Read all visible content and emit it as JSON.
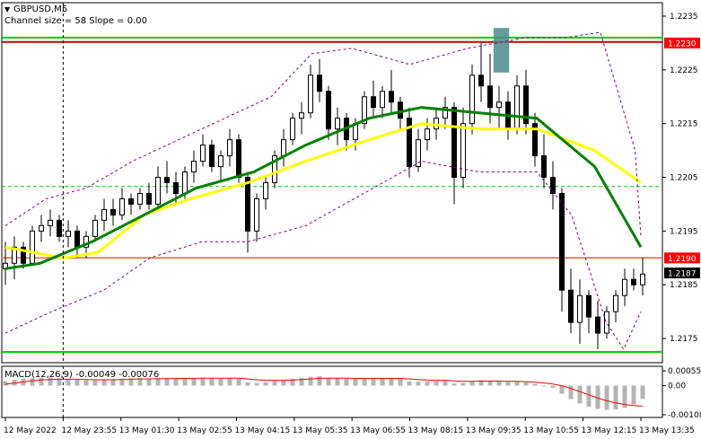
{
  "chart_data": {
    "type": "candlestick",
    "symbol_label": "GBPUSD,M5",
    "indicator_label": "Channel size = 58  Slope = 0.00",
    "price_axis": {
      "ticks": [
        "1.2235",
        "1.2225",
        "1.2215",
        "1.2205",
        "1.2195",
        "1.2185",
        "1.2175"
      ],
      "tick_values": [
        1.2235,
        1.2225,
        1.2215,
        1.2205,
        1.2195,
        1.2185,
        1.2175
      ],
      "range": [
        1.21705,
        1.22375
      ]
    },
    "price_labels": [
      {
        "text": "1.2230",
        "value": 1.223,
        "color": "#ff0000"
      },
      {
        "text": "1.2190",
        "value": 1.219,
        "color": "#ff0000"
      },
      {
        "text": "1.2187",
        "value": 1.21872,
        "color": "#000000"
      }
    ],
    "levels": [
      {
        "value": 1.2231,
        "style": "solid",
        "color": "#00cc00"
      },
      {
        "value": 1.22302,
        "style": "solid",
        "color": "#cc0000"
      },
      {
        "value": 1.22033,
        "style": "dashed",
        "color": "#00cc00"
      },
      {
        "value": 1.219,
        "style": "solid",
        "color": "#e08060"
      },
      {
        "value": 1.21725,
        "style": "solid",
        "color": "#00cc00"
      }
    ],
    "vertical_marker_time_index": 1,
    "highlight_box": {
      "from_time_index": 8.45,
      "to_time_index": 8.72,
      "price_low": 1.22245,
      "price_high": 1.22328,
      "color": "#4a8b8b"
    },
    "time_axis": [
      "12 May 2022",
      "12 May 23:55",
      "13 May 01:30",
      "13 May 02:55",
      "13 May 04:15",
      "13 May 05:35",
      "13 May 06:55",
      "13 May 08:15",
      "13 May 09:35",
      "13 May 10:55",
      "13 May 12:15",
      "13 May 13:35"
    ],
    "moving_averages": [
      {
        "color": "#ffff00",
        "role": "slow",
        "points": [
          [
            0,
            1.2192
          ],
          [
            1,
            1.219
          ],
          [
            1.6,
            1.2191
          ],
          [
            2.4,
            1.2198
          ],
          [
            3.2,
            1.2201
          ],
          [
            4.2,
            1.2204
          ],
          [
            5.2,
            1.2208
          ],
          [
            6.3,
            1.2212
          ],
          [
            7.2,
            1.2215
          ],
          [
            8.2,
            1.2214
          ],
          [
            9.2,
            1.2214
          ],
          [
            10.2,
            1.221
          ],
          [
            11,
            1.2204
          ]
        ]
      },
      {
        "color": "#008000",
        "role": "fast",
        "points": [
          [
            0,
            1.2188
          ],
          [
            0.6,
            1.2189
          ],
          [
            1.5,
            1.2193
          ],
          [
            2.4,
            1.2198
          ],
          [
            3.3,
            1.2203
          ],
          [
            4.3,
            1.2206
          ],
          [
            5.2,
            1.2211
          ],
          [
            6.3,
            1.2216
          ],
          [
            7.2,
            1.2218
          ],
          [
            8.2,
            1.2217
          ],
          [
            9.2,
            1.2216
          ],
          [
            10.2,
            1.2207
          ],
          [
            11,
            1.2192
          ]
        ]
      },
      {
        "color": "#800080",
        "role": "band-upper",
        "dashed": true,
        "points": [
          [
            0,
            1.2196
          ],
          [
            0.7,
            1.2201
          ],
          [
            1.4,
            1.2203
          ],
          [
            2.2,
            1.2208
          ],
          [
            3,
            1.2212
          ],
          [
            3.8,
            1.2216
          ],
          [
            4.6,
            1.222
          ],
          [
            5.3,
            1.2228
          ],
          [
            6.0,
            1.2229
          ],
          [
            7.0,
            1.2226
          ],
          [
            8.0,
            1.2229
          ],
          [
            9.0,
            1.2231
          ],
          [
            9.7,
            1.2231
          ],
          [
            10.3,
            1.2232
          ],
          [
            10.9,
            1.221
          ],
          [
            11,
            1.2194
          ]
        ]
      },
      {
        "color": "#800080",
        "role": "band-lower",
        "dashed": true,
        "points": [
          [
            0,
            1.2176
          ],
          [
            0.8,
            1.218
          ],
          [
            1.7,
            1.2184
          ],
          [
            2.5,
            1.219
          ],
          [
            3.4,
            1.2193
          ],
          [
            4.2,
            1.2193
          ],
          [
            5.2,
            1.2196
          ],
          [
            6.2,
            1.2202
          ],
          [
            7.2,
            1.2208
          ],
          [
            8.2,
            1.2206
          ],
          [
            9.2,
            1.2206
          ],
          [
            9.8,
            1.2198
          ],
          [
            10.4,
            1.2178
          ],
          [
            10.7,
            1.2173
          ],
          [
            11,
            1.218
          ]
        ]
      }
    ],
    "candles": [
      [
        1.2188,
        1.2193,
        1.2185,
        1.2189
      ],
      [
        1.2189,
        1.2194,
        1.2186,
        1.2192
      ],
      [
        1.2192,
        1.2193,
        1.2188,
        1.2189
      ],
      [
        1.2189,
        1.2196,
        1.2189,
        1.2195
      ],
      [
        1.2195,
        1.2198,
        1.2193,
        1.2196
      ],
      [
        1.2196,
        1.2199,
        1.2194,
        1.2197
      ],
      [
        1.2197,
        1.2198,
        1.2193,
        1.2194
      ],
      [
        1.2194,
        1.2197,
        1.2192,
        1.2195
      ],
      [
        1.2195,
        1.2196,
        1.219,
        1.2192
      ],
      [
        1.2192,
        1.2195,
        1.219,
        1.2194
      ],
      [
        1.2194,
        1.2198,
        1.2193,
        1.2197
      ],
      [
        1.2197,
        1.2201,
        1.2195,
        1.2199
      ],
      [
        1.2199,
        1.2201,
        1.2196,
        1.2198
      ],
      [
        1.2198,
        1.2203,
        1.2197,
        1.2201
      ],
      [
        1.2201,
        1.2202,
        1.2198,
        1.22
      ],
      [
        1.22,
        1.2203,
        1.2199,
        1.2202
      ],
      [
        1.2202,
        1.2204,
        1.2199,
        1.22
      ],
      [
        1.22,
        1.2207,
        1.2199,
        1.2205
      ],
      [
        1.2205,
        1.2208,
        1.2202,
        1.2204
      ],
      [
        1.2204,
        1.2206,
        1.22,
        1.2202
      ],
      [
        1.2202,
        1.2207,
        1.2201,
        1.2206
      ],
      [
        1.2206,
        1.221,
        1.2204,
        1.2208
      ],
      [
        1.2208,
        1.2213,
        1.2207,
        1.2211
      ],
      [
        1.2211,
        1.2212,
        1.2206,
        1.2207
      ],
      [
        1.2207,
        1.221,
        1.2204,
        1.2209
      ],
      [
        1.2209,
        1.2214,
        1.2207,
        1.2212
      ],
      [
        1.2212,
        1.2213,
        1.2204,
        1.2205
      ],
      [
        1.2205,
        1.2206,
        1.2191,
        1.2195
      ],
      [
        1.2195,
        1.2202,
        1.2193,
        1.2201
      ],
      [
        1.2201,
        1.2205,
        1.2199,
        1.2204
      ],
      [
        1.2204,
        1.221,
        1.2203,
        1.2209
      ],
      [
        1.2209,
        1.2214,
        1.2207,
        1.2212
      ],
      [
        1.2212,
        1.2217,
        1.2211,
        1.2216
      ],
      [
        1.2216,
        1.2219,
        1.2213,
        1.2217
      ],
      [
        1.2217,
        1.2226,
        1.2216,
        1.2224
      ],
      [
        1.2224,
        1.2227,
        1.2219,
        1.2221
      ],
      [
        1.2221,
        1.2222,
        1.2212,
        1.2214
      ],
      [
        1.2214,
        1.2218,
        1.2211,
        1.2216
      ],
      [
        1.2216,
        1.2217,
        1.221,
        1.2212
      ],
      [
        1.2212,
        1.2216,
        1.221,
        1.2215
      ],
      [
        1.2215,
        1.2221,
        1.2214,
        1.222
      ],
      [
        1.222,
        1.2223,
        1.2216,
        1.2218
      ],
      [
        1.2218,
        1.2222,
        1.2216,
        1.2221
      ],
      [
        1.2221,
        1.2225,
        1.2217,
        1.2219
      ],
      [
        1.2219,
        1.222,
        1.2214,
        1.2216
      ],
      [
        1.2216,
        1.2218,
        1.2205,
        1.2207
      ],
      [
        1.2207,
        1.2214,
        1.2206,
        1.2212
      ],
      [
        1.2212,
        1.2216,
        1.221,
        1.2214
      ],
      [
        1.2214,
        1.2218,
        1.2212,
        1.2216
      ],
      [
        1.2216,
        1.222,
        1.2214,
        1.2218
      ],
      [
        1.2218,
        1.2219,
        1.22,
        1.2205
      ],
      [
        1.2205,
        1.2218,
        1.2203,
        1.2215
      ],
      [
        1.2215,
        1.2226,
        1.2213,
        1.2224
      ],
      [
        1.2224,
        1.223,
        1.2219,
        1.2222
      ],
      [
        1.2222,
        1.2228,
        1.2215,
        1.2218
      ],
      [
        1.2218,
        1.2222,
        1.2214,
        1.2219
      ],
      [
        1.2219,
        1.2221,
        1.2212,
        1.2214
      ],
      [
        1.2214,
        1.2224,
        1.2213,
        1.2222
      ],
      [
        1.2222,
        1.2225,
        1.2213,
        1.2215
      ],
      [
        1.2215,
        1.2217,
        1.2207,
        1.2209
      ],
      [
        1.2209,
        1.2213,
        1.2203,
        1.2205
      ],
      [
        1.2205,
        1.2208,
        1.2199,
        1.2202
      ],
      [
        1.2202,
        1.2203,
        1.218,
        1.2184
      ],
      [
        1.2184,
        1.2188,
        1.2176,
        1.2178
      ],
      [
        1.2178,
        1.2186,
        1.2174,
        1.2183
      ],
      [
        1.2183,
        1.2184,
        1.2176,
        1.2179
      ],
      [
        1.2179,
        1.2182,
        1.2173,
        1.2176
      ],
      [
        1.2176,
        1.2181,
        1.2175,
        1.218
      ],
      [
        1.218,
        1.2184,
        1.2178,
        1.2183
      ],
      [
        1.2183,
        1.2188,
        1.2181,
        1.2186
      ],
      [
        1.2186,
        1.2188,
        1.2184,
        1.2185
      ],
      [
        1.2185,
        1.219,
        1.2183,
        1.2187
      ]
    ],
    "macd": {
      "label": "MACD(12,26,9) -0.00049 -0.00076",
      "ticks": [
        "0.00055",
        "0.00",
        "-0.00108"
      ],
      "tick_values": [
        0.00055,
        0.0,
        -0.00108
      ],
      "range": [
        -0.00118,
        0.00072
      ],
      "histogram_color": "#b4b4b4",
      "signal_color": "#ff0000",
      "histogram": [
        0.00016,
        0.00022,
        0.00026,
        0.00028,
        0.0003,
        0.0003,
        0.00027,
        0.00025,
        0.00022,
        0.0002,
        0.0002,
        0.00022,
        0.00024,
        0.00026,
        0.00027,
        0.00028,
        0.00027,
        0.00028,
        0.00029,
        0.00028,
        0.00027,
        0.00028,
        0.0003,
        0.00029,
        0.00028,
        0.00029,
        0.00026,
        0.00012,
        0.0001,
        0.00013,
        0.00018,
        0.00022,
        0.00026,
        0.00028,
        0.00033,
        0.00035,
        0.0003,
        0.00028,
        0.00026,
        0.00025,
        0.00026,
        0.00026,
        0.00027,
        0.00027,
        0.00025,
        0.00016,
        0.00015,
        0.00016,
        0.00017,
        0.00018,
        8e-05,
        0.0001,
        0.00016,
        0.0002,
        0.00018,
        0.00017,
        0.00014,
        0.00015,
        0.00012,
        6e-05,
        -2e-05,
        -8e-05,
        -0.0003,
        -0.0005,
        -0.00066,
        -0.00078,
        -0.00086,
        -0.0009,
        -0.00088,
        -0.00082,
        -0.0007,
        -0.00049
      ],
      "signal": [
        5e-05,
        0.0001,
        0.00014,
        0.00018,
        0.00021,
        0.00023,
        0.00024,
        0.00024,
        0.00024,
        0.00023,
        0.00022,
        0.00022,
        0.00022,
        0.00023,
        0.00024,
        0.00025,
        0.00025,
        0.00026,
        0.00026,
        0.00027,
        0.00027,
        0.00027,
        0.00028,
        0.00028,
        0.00028,
        0.00028,
        0.00028,
        0.00025,
        0.00022,
        0.0002,
        0.0002,
        0.0002,
        0.00021,
        0.00023,
        0.00025,
        0.00027,
        0.00028,
        0.00028,
        0.00028,
        0.00027,
        0.00027,
        0.00027,
        0.00027,
        0.00027,
        0.00027,
        0.00025,
        0.00023,
        0.00021,
        0.0002,
        0.0002,
        0.00018,
        0.00016,
        0.00016,
        0.00017,
        0.00017,
        0.00017,
        0.00016,
        0.00016,
        0.00015,
        0.00013,
        0.0001,
        6e-05,
        0.0,
        -0.0001,
        -0.00022,
        -0.00034,
        -0.00046,
        -0.00056,
        -0.00064,
        -0.0007,
        -0.00074,
        -0.00076
      ]
    }
  }
}
